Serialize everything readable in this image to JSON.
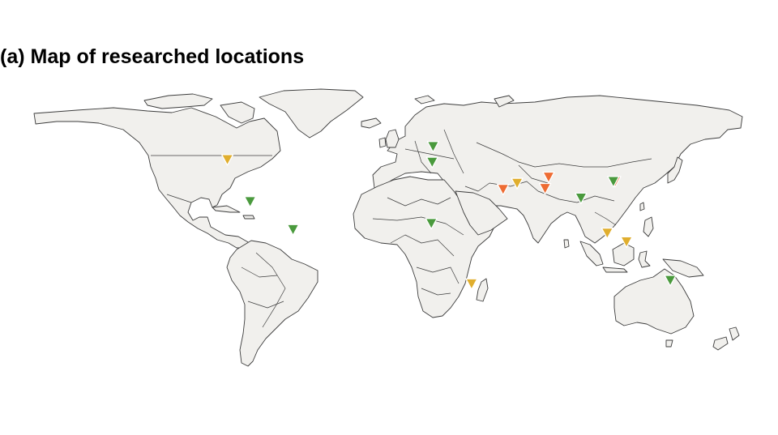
{
  "title": "(a) Map of researched locations",
  "colors": {
    "land": "#f1f0ed",
    "outline": "#3c3c3c",
    "green": "#4a9a3d",
    "yellow": "#e0ae2e",
    "orange": "#ee6c33"
  },
  "map_data": {
    "type": "world-map",
    "projection": "equirectangular",
    "markers": [
      {
        "place": "western United States",
        "lon": -112,
        "lat": 44.5,
        "category": "yellow"
      },
      {
        "place": "central Mexico",
        "lon": -99,
        "lat": 20.5,
        "category": "green"
      },
      {
        "place": "Colombia",
        "lon": -74.5,
        "lat": 4.5,
        "category": "green"
      },
      {
        "place": "Netherlands / Germany",
        "lon": 5.5,
        "lat": 52,
        "category": "green"
      },
      {
        "place": "Spain / France",
        "lon": 5.0,
        "lat": 43,
        "category": "green"
      },
      {
        "place": "Nigeria",
        "lon": 4.5,
        "lat": 8,
        "category": "green"
      },
      {
        "place": "South Africa",
        "lon": 27.5,
        "lat": -26.5,
        "category": "yellow"
      },
      {
        "place": "Saudi Arabia / Gulf",
        "lon": 45.5,
        "lat": 27.5,
        "category": "orange"
      },
      {
        "place": "Iran",
        "lon": 53.5,
        "lat": 31,
        "category": "yellow"
      },
      {
        "place": "Pakistan (north)",
        "lon": 71.5,
        "lat": 34.5,
        "category": "orange"
      },
      {
        "place": "Pakistan (south)",
        "lon": 69.5,
        "lat": 28,
        "category": "orange"
      },
      {
        "place": "Bangladesh / north-east India",
        "lon": 90,
        "lat": 22.5,
        "category": "green"
      },
      {
        "place": "China",
        "lon": 109.5,
        "lat": 32,
        "category": "orange"
      },
      {
        "place": "China",
        "lon": 108.5,
        "lat": 32,
        "category": "green"
      },
      {
        "place": "Malaysia",
        "lon": 105,
        "lat": 2.5,
        "category": "yellow"
      },
      {
        "place": "Borneo",
        "lon": 116,
        "lat": -2.5,
        "category": "yellow"
      },
      {
        "place": "Australia",
        "lon": 141,
        "lat": -24.5,
        "category": "green"
      }
    ]
  }
}
